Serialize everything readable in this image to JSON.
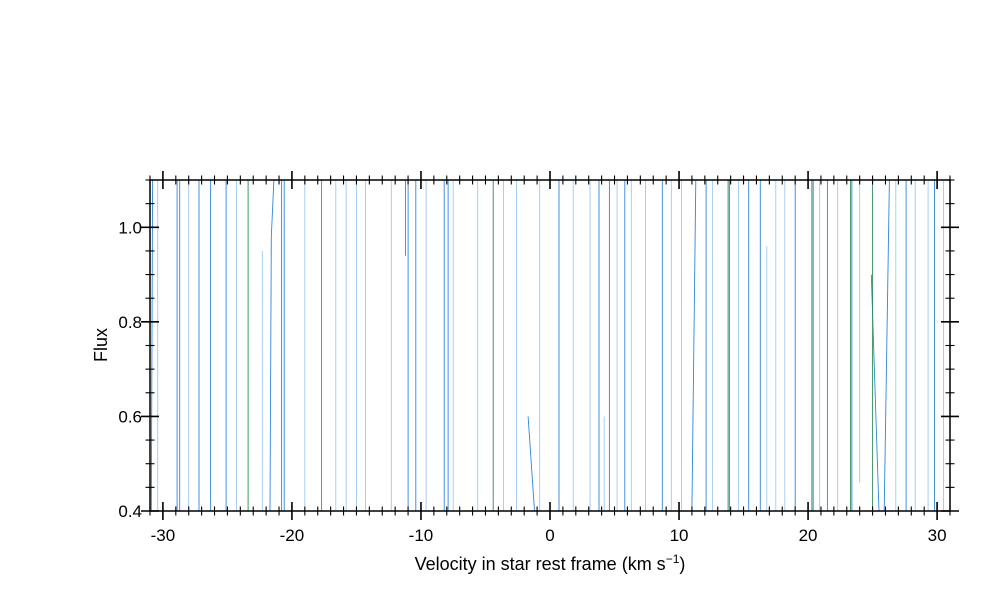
{
  "chart_data": {
    "type": "line",
    "title": "",
    "xlabel": "Velocity in star rest frame (km s",
    "xlabel_superscript": "−1",
    "xlabel_close": ")",
    "ylabel": "Flux",
    "xlim": [
      -31,
      31
    ],
    "ylim": [
      0.4,
      1.1
    ],
    "x_major_ticks": [
      -30,
      -20,
      -10,
      0,
      10,
      20,
      30
    ],
    "x_tick_labels": [
      "-30",
      "-20",
      "-10",
      "0",
      "10",
      "20",
      "30"
    ],
    "y_major_ticks": [
      0.4,
      0.6,
      0.8,
      1.0
    ],
    "y_tick_labels": [
      "0.4",
      "0.6",
      "0.8",
      "1.0"
    ],
    "x_minor_step": 1,
    "y_minor_step": 0.05,
    "grid": false,
    "series": [
      {
        "color": "#2e86de",
        "segments": [
          [
            [
              -30.9,
              0.4
            ],
            [
              -30.8,
              1.1
            ]
          ],
          [
            [
              -28.9,
              0.4
            ],
            [
              -28.9,
              1.1
            ]
          ],
          [
            [
              -28.7,
              0.4
            ],
            [
              -28.7,
              1.1
            ]
          ],
          [
            [
              -27.2,
              0.4
            ],
            [
              -27.2,
              1.1
            ]
          ],
          [
            [
              -26.3,
              0.4
            ],
            [
              -26.3,
              1.1
            ]
          ],
          [
            [
              -25.1,
              0.4
            ],
            [
              -25.1,
              1.1
            ]
          ],
          [
            [
              -21.7,
              0.4
            ],
            [
              -21.6,
              0.98
            ],
            [
              -21.4,
              1.1
            ]
          ],
          [
            [
              -20.8,
              0.4
            ],
            [
              -20.8,
              1.1
            ]
          ],
          [
            [
              -20.6,
              0.4
            ],
            [
              -20.6,
              1.1
            ]
          ],
          [
            [
              -17.7,
              0.4
            ],
            [
              -17.7,
              1.1
            ]
          ],
          [
            [
              -11.2,
              0.94
            ],
            [
              -11.2,
              1.1
            ]
          ],
          [
            [
              -11.0,
              0.4
            ],
            [
              -11.0,
              1.1
            ]
          ],
          [
            [
              -10.4,
              0.4
            ],
            [
              -10.4,
              1.1
            ]
          ],
          [
            [
              -8.2,
              0.4
            ],
            [
              -8.2,
              1.1
            ]
          ],
          [
            [
              -7.9,
              0.4
            ],
            [
              -7.9,
              1.1
            ]
          ],
          [
            [
              -1.7,
              0.6
            ],
            [
              -1.2,
              0.4
            ]
          ],
          [
            [
              0.7,
              0.4
            ],
            [
              0.7,
              1.1
            ]
          ],
          [
            [
              3.8,
              0.4
            ],
            [
              3.8,
              1.1
            ]
          ],
          [
            [
              4.6,
              0.4
            ],
            [
              4.6,
              1.1
            ]
          ],
          [
            [
              5.8,
              0.4
            ],
            [
              5.8,
              1.1
            ]
          ],
          [
            [
              8.7,
              0.4
            ],
            [
              8.7,
              1.1
            ]
          ],
          [
            [
              11.0,
              0.4
            ],
            [
              11.3,
              1.1
            ]
          ],
          [
            [
              12.1,
              0.4
            ],
            [
              12.1,
              1.1
            ]
          ],
          [
            [
              13.9,
              0.4
            ],
            [
              13.9,
              1.1
            ]
          ],
          [
            [
              15.4,
              0.4
            ],
            [
              15.4,
              1.1
            ]
          ],
          [
            [
              16.3,
              0.4
            ],
            [
              16.3,
              1.1
            ]
          ],
          [
            [
              19.0,
              0.4
            ],
            [
              19.0,
              1.1
            ]
          ],
          [
            [
              20.4,
              0.4
            ],
            [
              20.4,
              1.1
            ]
          ],
          [
            [
              21.5,
              0.4
            ],
            [
              21.5,
              1.1
            ]
          ],
          [
            [
              23.4,
              0.4
            ],
            [
              23.4,
              1.1
            ]
          ],
          [
            [
              24.9,
              0.9
            ],
            [
              25.5,
              0.4
            ]
          ],
          [
            [
              25.9,
              0.4
            ],
            [
              26.3,
              1.1
            ]
          ],
          [
            [
              27.6,
              0.4
            ],
            [
              27.6,
              1.1
            ]
          ],
          [
            [
              29.8,
              0.4
            ],
            [
              29.8,
              1.1
            ]
          ]
        ]
      },
      {
        "color": "#2e8b57",
        "segments": [
          [
            [
              -23.4,
              0.4
            ],
            [
              -23.4,
              1.1
            ]
          ],
          [
            [
              -4.4,
              0.4
            ],
            [
              -4.4,
              1.1
            ]
          ],
          [
            [
              13.8,
              0.4
            ],
            [
              13.8,
              1.1
            ]
          ],
          [
            [
              20.3,
              0.4
            ],
            [
              20.3,
              1.1
            ]
          ],
          [
            [
              23.3,
              0.4
            ],
            [
              23.3,
              1.1
            ]
          ],
          [
            [
              25.0,
              0.4
            ],
            [
              25.0,
              1.1
            ]
          ]
        ]
      },
      {
        "color": "#9ec9f2",
        "segments": [
          [
            [
              -30.4,
              0.4
            ],
            [
              -30.4,
              1.1
            ]
          ],
          [
            [
              -28.0,
              0.4
            ],
            [
              -28.0,
              1.1
            ]
          ],
          [
            [
              -24.3,
              0.4
            ],
            [
              -24.3,
              1.1
            ]
          ],
          [
            [
              -22.3,
              0.4
            ],
            [
              -22.3,
              0.95
            ]
          ],
          [
            [
              -19.0,
              0.4
            ],
            [
              -19.0,
              1.1
            ]
          ],
          [
            [
              -16.6,
              0.4
            ],
            [
              -16.6,
              1.1
            ]
          ],
          [
            [
              -15.8,
              0.4
            ],
            [
              -15.8,
              1.1
            ]
          ],
          [
            [
              -15.0,
              0.4
            ],
            [
              -15.0,
              1.1
            ]
          ],
          [
            [
              -14.3,
              0.4
            ],
            [
              -14.3,
              1.1
            ]
          ],
          [
            [
              -12.3,
              0.4
            ],
            [
              -12.3,
              1.1
            ]
          ],
          [
            [
              -9.6,
              0.4
            ],
            [
              -9.6,
              1.1
            ]
          ],
          [
            [
              -7.5,
              0.4
            ],
            [
              -7.5,
              1.1
            ]
          ],
          [
            [
              -5.6,
              0.4
            ],
            [
              -5.6,
              1.1
            ]
          ],
          [
            [
              -3.6,
              0.4
            ],
            [
              -3.6,
              1.1
            ]
          ],
          [
            [
              -2.6,
              0.4
            ],
            [
              -2.6,
              1.1
            ]
          ],
          [
            [
              -0.8,
              0.4
            ],
            [
              -0.8,
              1.1
            ]
          ],
          [
            [
              1.8,
              0.4
            ],
            [
              1.8,
              1.1
            ]
          ],
          [
            [
              3.1,
              0.4
            ],
            [
              3.1,
              1.1
            ]
          ],
          [
            [
              4.2,
              0.4
            ],
            [
              4.2,
              0.6
            ]
          ],
          [
            [
              5.2,
              0.4
            ],
            [
              5.2,
              1.1
            ]
          ],
          [
            [
              6.3,
              0.4
            ],
            [
              6.3,
              1.1
            ]
          ],
          [
            [
              7.4,
              0.4
            ],
            [
              7.4,
              1.1
            ]
          ],
          [
            [
              9.4,
              0.4
            ],
            [
              9.4,
              1.1
            ]
          ],
          [
            [
              10.2,
              0.4
            ],
            [
              10.2,
              1.1
            ]
          ],
          [
            [
              12.6,
              0.4
            ],
            [
              12.6,
              1.1
            ]
          ],
          [
            [
              14.6,
              0.4
            ],
            [
              14.6,
              1.1
            ]
          ],
          [
            [
              16.8,
              0.4
            ],
            [
              16.8,
              0.96
            ]
          ],
          [
            [
              17.5,
              0.4
            ],
            [
              17.5,
              1.1
            ]
          ],
          [
            [
              18.2,
              0.4
            ],
            [
              18.2,
              1.1
            ]
          ],
          [
            [
              20.9,
              0.4
            ],
            [
              20.9,
              1.1
            ]
          ],
          [
            [
              22.3,
              0.4
            ],
            [
              22.3,
              1.1
            ]
          ],
          [
            [
              24.0,
              0.46
            ],
            [
              24.0,
              1.1
            ]
          ],
          [
            [
              26.8,
              0.4
            ],
            [
              26.8,
              1.1
            ]
          ],
          [
            [
              28.3,
              0.4
            ],
            [
              28.3,
              1.1
            ]
          ],
          [
            [
              29.3,
              0.4
            ],
            [
              29.3,
              1.1
            ]
          ],
          [
            [
              30.5,
              0.4
            ],
            [
              30.5,
              1.1
            ]
          ]
        ]
      }
    ]
  }
}
